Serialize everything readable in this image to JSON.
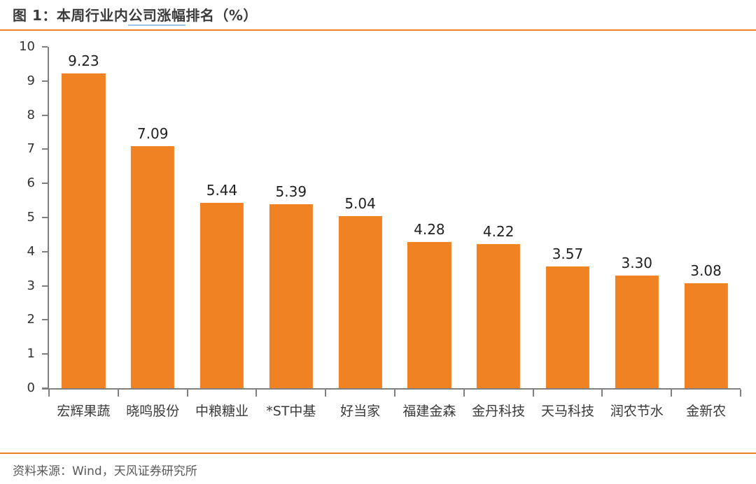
{
  "figure": {
    "title_prefix": "图 1：本周行业内",
    "title_link": "公司涨幅",
    "title_suffix": "排名（%）",
    "source": "资料来源：Wind，天风证券研究所"
  },
  "colors": {
    "bar": "#F08223",
    "rule": "#F08223",
    "axis": "#808080",
    "title_text": "#3B3B3B",
    "value_label": "#1F1F1F",
    "tick_label": "#333333",
    "category_label": "#3A3A3A",
    "source_text": "#595959",
    "link_underline": "#9CC2E5"
  },
  "chart_data": {
    "type": "bar",
    "title": "本周行业内公司涨幅排名（%）",
    "categories": [
      "宏辉果蔬",
      "晓鸣股份",
      "中粮糖业",
      "*ST中基",
      "好当家",
      "福建金森",
      "金丹科技",
      "天马科技",
      "润农节水",
      "金新农"
    ],
    "values": [
      9.23,
      7.09,
      5.44,
      5.39,
      5.04,
      4.28,
      4.22,
      3.57,
      3.3,
      3.08
    ],
    "value_labels": [
      "9.23",
      "7.09",
      "5.44",
      "5.39",
      "5.04",
      "4.28",
      "4.22",
      "3.57",
      "3.30",
      "3.08"
    ],
    "xlabel": "",
    "ylabel": "",
    "ylim": [
      0,
      10
    ],
    "yticks": [
      0,
      1,
      2,
      3,
      4,
      5,
      6,
      7,
      8,
      9,
      10
    ],
    "grid": false,
    "legend": "none",
    "bar_color": "#F08223"
  }
}
